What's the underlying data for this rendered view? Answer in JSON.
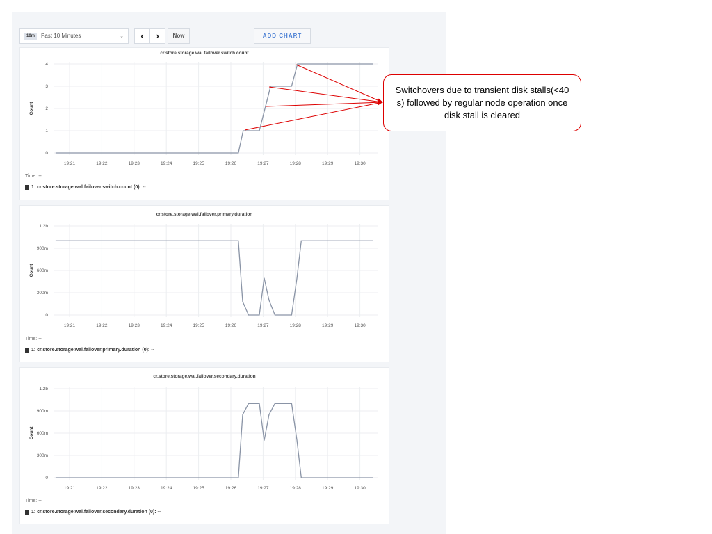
{
  "toolbar": {
    "range_badge": "10m",
    "range_label": "Past 10 Minutes",
    "prev_icon": "chevron-left",
    "next_icon": "chevron-right",
    "now_label": "Now",
    "add_chart_label": "ADD CHART"
  },
  "x_ticks": [
    "19:21",
    "19:22",
    "19:23",
    "19:24",
    "19:25",
    "19:26",
    "19:27",
    "19:28",
    "19:29",
    "19:30"
  ],
  "annotation": {
    "text": "Switchovers due to transient disk stalls(<40 s) followed by regular node operation once disk stall is cleared",
    "color": "#dd0000"
  },
  "chart_data": [
    {
      "type": "line",
      "title": "cr.store.storage.wal.failover.switch.count",
      "ylabel": "Count",
      "ylim": [
        0,
        4
      ],
      "y_ticks": [
        "0",
        "1",
        "2",
        "3",
        "4"
      ],
      "y_tick_values": [
        0,
        1,
        2,
        3,
        4
      ],
      "time_label": "Time:",
      "time_value": "--",
      "legend": "1: cr.store.storage.wal.failover.switch.count (0):",
      "legend_value": "--",
      "color": "#8a94a6",
      "x": [
        "19:20:34",
        "19:26:14",
        "19:26:23",
        "19:26:53",
        "19:27:14",
        "19:27:53",
        "19:28:04",
        "19:30:24"
      ],
      "y": [
        0,
        0,
        1,
        1,
        3,
        3,
        4,
        4
      ]
    },
    {
      "type": "line",
      "title": "cr.store.storage.wal.failover.primary.duration",
      "ylabel": "Count",
      "ylim": [
        0,
        1.2
      ],
      "y_ticks": [
        "0",
        "300m",
        "600m",
        "900m",
        "1.2b"
      ],
      "y_tick_values": [
        0,
        0.3,
        0.6,
        0.9,
        1.2
      ],
      "time_label": "Time:",
      "time_value": "--",
      "legend": "1: cr.store.storage.wal.failover.primary.duration (0):",
      "legend_value": "--",
      "color": "#8a94a6",
      "x": [
        "19:20:34",
        "19:26:14",
        "19:26:22",
        "19:26:33",
        "19:26:53",
        "19:27:02",
        "19:27:11",
        "19:27:22",
        "19:27:53",
        "19:28:03",
        "19:28:11",
        "19:30:24"
      ],
      "y": [
        1,
        1,
        0.18,
        0,
        0,
        0.5,
        0.2,
        0,
        0,
        0.5,
        1,
        1
      ]
    },
    {
      "type": "line",
      "title": "cr.store.storage.wal.failover.secondary.duration",
      "ylabel": "Count",
      "ylim": [
        0,
        1.2
      ],
      "y_ticks": [
        "0",
        "300m",
        "600m",
        "900m",
        "1.2b"
      ],
      "y_tick_values": [
        0,
        0.3,
        0.6,
        0.9,
        1.2
      ],
      "time_label": "Time:",
      "time_value": "--",
      "legend": "1: cr.store.storage.wal.failover.secondary.duration (0):",
      "legend_value": "--",
      "color": "#8a94a6",
      "x": [
        "19:20:34",
        "19:26:14",
        "19:26:22",
        "19:26:33",
        "19:26:53",
        "19:27:02",
        "19:27:11",
        "19:27:22",
        "19:27:53",
        "19:28:03",
        "19:28:11",
        "19:30:24"
      ],
      "y": [
        0,
        0,
        0.85,
        1,
        1,
        0.5,
        0.85,
        1,
        1,
        0.5,
        0,
        0
      ]
    }
  ]
}
